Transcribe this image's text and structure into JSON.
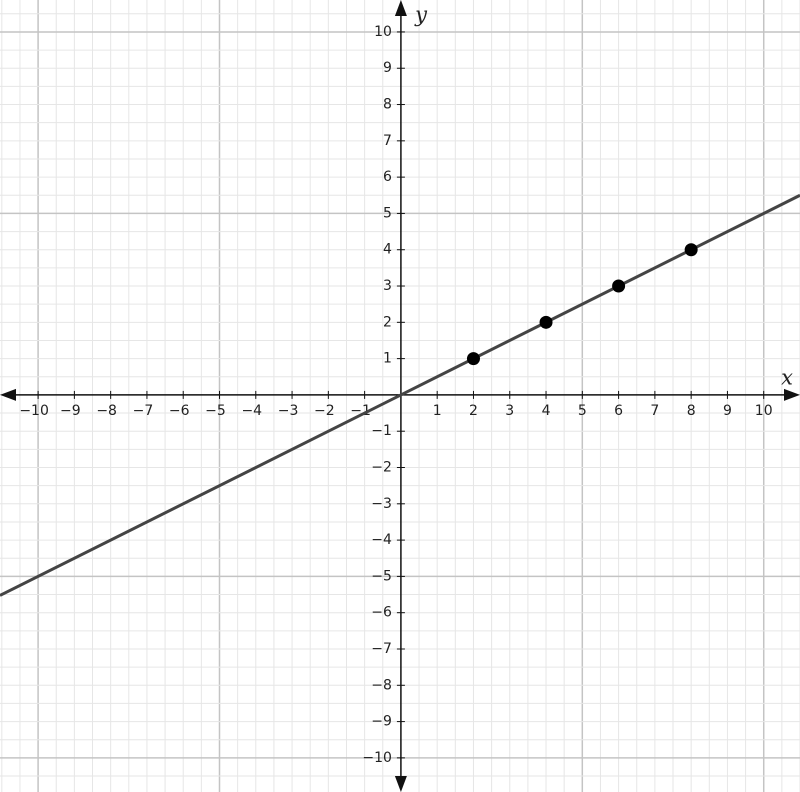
{
  "chart_data": {
    "type": "scatter",
    "x_label": "x",
    "y_label": "y",
    "xlim": [
      -11.05,
      11
    ],
    "ylim": [
      -10.94,
      10.88
    ],
    "grid": true,
    "grid_step": 0.5,
    "major_grid_step": 5,
    "xticks": [
      {
        "value": -10,
        "label": "−10"
      },
      {
        "value": -9,
        "label": "−9"
      },
      {
        "value": -8,
        "label": "−8"
      },
      {
        "value": -7,
        "label": "−7"
      },
      {
        "value": -6,
        "label": "−6"
      },
      {
        "value": -5,
        "label": "−5"
      },
      {
        "value": -4,
        "label": "−4"
      },
      {
        "value": -3,
        "label": "−3"
      },
      {
        "value": -2,
        "label": "−2"
      },
      {
        "value": -1,
        "label": "−1"
      },
      1,
      2,
      3,
      4,
      5,
      6,
      7,
      8,
      9,
      10
    ],
    "yticks": [
      {
        "value": -10,
        "label": "−10"
      },
      {
        "value": -9,
        "label": "−9"
      },
      {
        "value": -8,
        "label": "−8"
      },
      {
        "value": -7,
        "label": "−7"
      },
      {
        "value": -6,
        "label": "−6"
      },
      {
        "value": -5,
        "label": "−5"
      },
      {
        "value": -4,
        "label": "−4"
      },
      {
        "value": -3,
        "label": "−3"
      },
      {
        "value": -2,
        "label": "−2"
      },
      {
        "value": -1,
        "label": "−1"
      },
      1,
      2,
      3,
      4,
      5,
      6,
      7,
      8,
      9,
      10
    ],
    "line": {
      "x": [
        -11.05,
        11
      ],
      "y": [
        -5.525,
        5.5
      ],
      "color": "#444444"
    },
    "points": {
      "x": [
        2,
        4,
        6,
        8
      ],
      "y": [
        1,
        2,
        3,
        4
      ],
      "color": "#000000"
    }
  }
}
